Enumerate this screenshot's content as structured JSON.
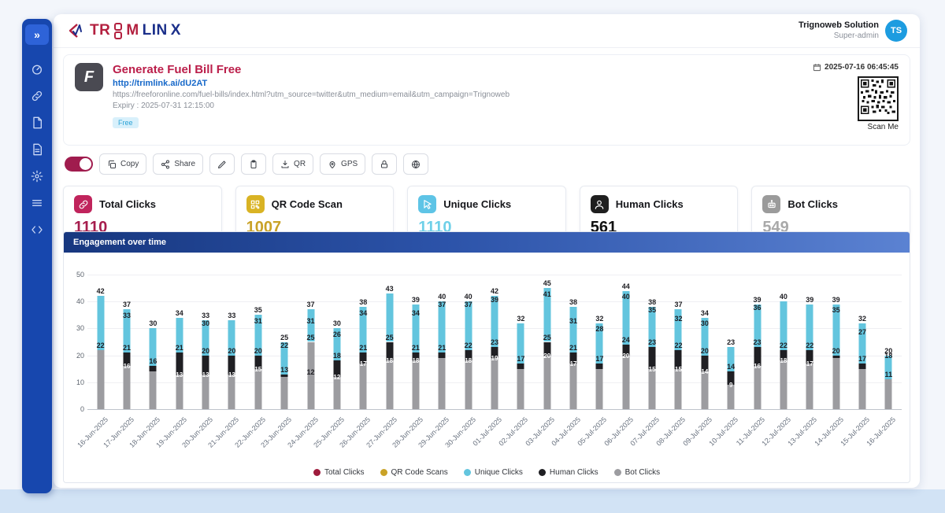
{
  "header": {
    "brand_red": "TR",
    "brand_red2": "M",
    "brand_navy": "LIN",
    "brand_navy2": "X",
    "user": {
      "name": "Trignoweb Solution",
      "role": "Super-admin",
      "avatar": "TS"
    }
  },
  "sidebar": {
    "items": [
      {
        "name": "expand"
      },
      {
        "name": "dashboard"
      },
      {
        "name": "links"
      },
      {
        "name": "pages"
      },
      {
        "name": "reports"
      },
      {
        "name": "settings"
      },
      {
        "name": "menu"
      },
      {
        "name": "developer"
      }
    ]
  },
  "link_card": {
    "favicon_letter": "F",
    "title": "Generate Fuel Bill Free",
    "short_url": "http://trimlink.ai/dU2AT",
    "destination_url": "https://freeforonline.com/fuel-bills/index.html?utm_source=twitter&utm_medium=email&utm_campaign=Trignoweb",
    "expiry": "Expiry : 2025-07-31 12:15:00",
    "badge": "Free",
    "timestamp": "2025-07-16 06:45:45",
    "qr_caption": "Scan Me"
  },
  "toolbar": {
    "copy": "Copy",
    "share": "Share",
    "qr": "QR",
    "gps": "GPS"
  },
  "stats": [
    {
      "label": "Total Clicks",
      "value": "1110",
      "color": "#a61d4d",
      "icon_bg": "#c0245c",
      "icon": "link-icon"
    },
    {
      "label": "QR Code Scan",
      "value": "1007",
      "color": "#c9a227",
      "icon_bg": "#d9b324",
      "icon": "qr-icon"
    },
    {
      "label": "Unique Clicks",
      "value": "1110",
      "color": "#6fd0e8",
      "icon_bg": "#5ec4e6",
      "icon": "cursor-icon"
    },
    {
      "label": "Human Clicks",
      "value": "561",
      "color": "#111111",
      "icon_bg": "#1f1f1f",
      "icon": "person-icon"
    },
    {
      "label": "Bot Clicks",
      "value": "549",
      "color": "#a9a9a9",
      "icon_bg": "#9b9b9b",
      "icon": "robot-icon"
    }
  ],
  "chart_data": {
    "type": "bar",
    "title": "Engagement over time",
    "ylim": [
      0,
      50
    ],
    "yticks": [
      0,
      10,
      20,
      30,
      40,
      50
    ],
    "grid": true,
    "legend_position": "bottom",
    "x": [
      "16-Jun-2025",
      "17-Jun-2025",
      "18-Jun-2025",
      "19-Jun-2025",
      "20-Jun-2025",
      "21-Jun-2025",
      "22-Jun-2025",
      "23-Jun-2025",
      "24-Jun-2025",
      "25-Jun-2025",
      "26-Jun-2025",
      "27-Jun-2025",
      "28-Jun-2025",
      "29-Jun-2025",
      "30-Jun-2025",
      "01-Jul-2025",
      "02-Jul-2025",
      "03-Jul-2025",
      "04-Jul-2025",
      "05-Jul-2025",
      "06-Jul-2025",
      "07-Jul-2025",
      "08-Jul-2025",
      "09-Jul-2025",
      "10-Jul-2025",
      "11-Jul-2025",
      "12-Jul-2025",
      "13-Jul-2025",
      "14-Jul-2025",
      "15-Jul-2025",
      "16-Jul-2025"
    ],
    "series": [
      {
        "name": "Total Clicks",
        "color": "#9e1b3c",
        "values": [
          42,
          37,
          30,
          34,
          33,
          33,
          35,
          25,
          37,
          30,
          38,
          43,
          39,
          40,
          40,
          42,
          32,
          45,
          38,
          32,
          44,
          38,
          37,
          34,
          23,
          39,
          40,
          39,
          39,
          32,
          20
        ]
      },
      {
        "name": "QR Code Scans",
        "color": "#c9a227",
        "values": [
          null,
          33,
          null,
          null,
          30,
          null,
          31,
          22,
          31,
          26,
          34,
          null,
          34,
          37,
          37,
          39,
          null,
          41,
          31,
          28,
          40,
          35,
          32,
          30,
          null,
          36,
          null,
          null,
          35,
          27,
          18
        ]
      },
      {
        "name": "Unique Clicks",
        "color": "#63c5de",
        "values": [
          42,
          37,
          30,
          34,
          33,
          33,
          35,
          25,
          37,
          30,
          38,
          43,
          39,
          40,
          40,
          42,
          32,
          45,
          38,
          32,
          44,
          38,
          37,
          34,
          23,
          39,
          40,
          39,
          39,
          32,
          20
        ]
      },
      {
        "name": "Human Clicks",
        "color": "#1f1f23",
        "values": [
          20,
          21,
          16,
          21,
          20,
          20,
          20,
          13,
          12,
          18,
          21,
          25,
          21,
          21,
          22,
          23,
          17,
          25,
          21,
          17,
          24,
          23,
          22,
          20,
          14,
          23,
          22,
          22,
          20,
          17,
          9
        ]
      },
      {
        "name": "Bot Clicks",
        "color": "#9c9ca0",
        "values": [
          22,
          16,
          14,
          13,
          13,
          13,
          15,
          12,
          25,
          12,
          17,
          18,
          18,
          19,
          18,
          19,
          15,
          20,
          17,
          15,
          20,
          15,
          15,
          14,
          9,
          16,
          18,
          17,
          19,
          15,
          11
        ]
      }
    ]
  }
}
